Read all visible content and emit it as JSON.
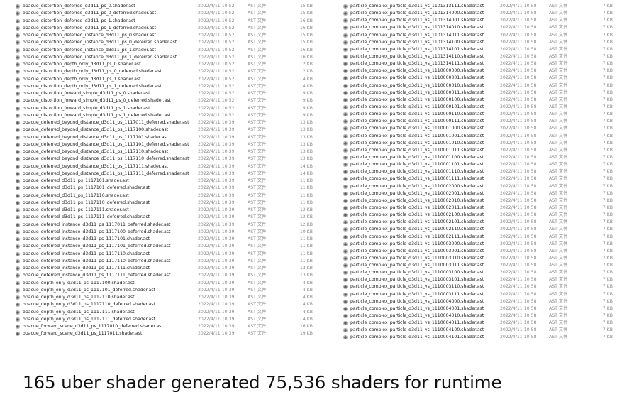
{
  "file_icon": "shader-file-icon",
  "left_files": [
    [
      "opacue_distortion_deferred_d3d11_ps_0.shader.ast",
      "2022/4/11 10:52",
      "AST 文件",
      "15 KB"
    ],
    [
      "opacue_distortion_deferred_d3d11_ps_0_deferred.shader.ast",
      "2022/4/11 10:52",
      "AST 文件",
      "15 KB"
    ],
    [
      "opacue_distortion_deferred_d3d11_ps_1.shader.ast",
      "2022/4/11 10:52",
      "AST 文件",
      "16 KB"
    ],
    [
      "opacue_distortion_deferred_d3d11_ps_1_deferred.shader.ast",
      "2022/4/11 10:52",
      "AST 文件",
      "16 KB"
    ],
    [
      "opacue_distortion_deferred_instance_d3d11_ps_0.shader.ast",
      "2022/4/11 10:52",
      "AST 文件",
      "15 KB"
    ],
    [
      "opacue_distortion_deferred_instance_d3d11_ps_0_deferred.shader.ast",
      "2022/4/11 10:52",
      "AST 文件",
      "15 KB"
    ],
    [
      "opacue_distortion_deferred_instance_d3d11_ps_1.shader.ast",
      "2022/4/11 10:52",
      "AST 文件",
      "16 KB"
    ],
    [
      "opacue_distortion_deferred_instance_d3d11_ps_1_deferred.shader.ast",
      "2022/4/11 10:52",
      "AST 文件",
      "16 KB"
    ],
    [
      "opacue_distortion_depth_only_d3d11_ps_0.shader.ast",
      "2022/4/11 10:52",
      "AST 文件",
      "2 KB"
    ],
    [
      "opacue_distortion_depth_only_d3d11_ps_0_deferred.shader.ast",
      "2022/4/11 10:52",
      "AST 文件",
      "2 KB"
    ],
    [
      "opacue_distortion_depth_only_d3d11_ps_1.shader.ast",
      "2022/4/11 10:52",
      "AST 文件",
      "4 KB"
    ],
    [
      "opacue_distortion_depth_only_d3d11_ps_1_deferred.shader.ast",
      "2022/4/11 10:52",
      "AST 文件",
      "4 KB"
    ],
    [
      "opacue_distortion_forward_simple_d3d11_ps_0.shader.ast",
      "2022/4/11 10:52",
      "AST 文件",
      "9 KB"
    ],
    [
      "opacue_distortion_forward_simple_d3d11_ps_0_deferred.shader.ast",
      "2022/4/11 10:52",
      "AST 文件",
      "9 KB"
    ],
    [
      "opacue_distortion_forward_simple_d3d11_ps_1.shader.ast",
      "2022/4/11 10:52",
      "AST 文件",
      "9 KB"
    ],
    [
      "opacue_distortion_forward_simple_d3d11_ps_1_deferred.shader.ast",
      "2022/4/11 10:52",
      "AST 文件",
      "9 KB"
    ],
    [
      "opacue_deferred_beyond_distance_d3d11_ps_1117011_deferred.shader.ast",
      "2022/4/11 10:39",
      "AST 文件",
      "13 KB"
    ],
    [
      "opacue_deferred_beyond_distance_d3d11_ps_1117100.shader.ast",
      "2022/4/11 10:39",
      "AST 文件",
      "13 KB"
    ],
    [
      "opacue_deferred_beyond_distance_d3d11_ps_1117101.shader.ast",
      "2022/4/11 10:39",
      "AST 文件",
      "13 KB"
    ],
    [
      "opacue_deferred_beyond_distance_d3d11_ps_1117101_deferred.shader.ast",
      "2022/4/11 10:39",
      "AST 文件",
      "13 KB"
    ],
    [
      "opacue_deferred_beyond_distance_d3d11_ps_1117110.shader.ast",
      "2022/4/11 10:39",
      "AST 文件",
      "13 KB"
    ],
    [
      "opacue_deferred_beyond_distance_d3d11_ps_1117110_deferred.shader.ast",
      "2022/4/11 10:39",
      "AST 文件",
      "13 KB"
    ],
    [
      "opacue_deferred_beyond_distance_d3d11_ps_1117111.shader.ast",
      "2022/4/11 10:39",
      "AST 文件",
      "14 KB"
    ],
    [
      "opacue_deferred_beyond_distance_d3d11_ps_1117111_deferred.shader.ast",
      "2022/4/11 10:39",
      "AST 文件",
      "14 KB"
    ],
    [
      "opacue_deferred_d3d11_ps_1117101.shader.ast",
      "2022/4/11 10:39",
      "AST 文件",
      "11 KB"
    ],
    [
      "opacue_deferred_d3d11_ps_1117101_deferred.shader.ast",
      "2022/4/11 10:39",
      "AST 文件",
      "11 KB"
    ],
    [
      "opacue_deferred_d3d11_ps_1117110.shader.ast",
      "2022/4/11 10:39",
      "AST 文件",
      "11 KB"
    ],
    [
      "opacue_deferred_d3d11_ps_1117110_deferred.shader.ast",
      "2022/4/11 10:39",
      "AST 文件",
      "11 KB"
    ],
    [
      "opacue_deferred_d3d11_ps_1117111.shader.ast",
      "2022/4/11 10:39",
      "AST 文件",
      "12 KB"
    ],
    [
      "opacue_deferred_d3d11_ps_1117111_deferred.shader.ast",
      "2022/4/11 10:39",
      "AST 文件",
      "12 KB"
    ],
    [
      "opacue_deferred_instance_d3d11_ps_1117011_deferred.shader.ast",
      "2022/4/11 10:39",
      "AST 文件",
      "12 KB"
    ],
    [
      "opacue_deferred_instance_d3d11_ps_1117100_deferred.shader.ast",
      "2022/4/11 10:39",
      "AST 文件",
      "10 KB"
    ],
    [
      "opacue_deferred_instance_d3d11_ps_1117101.shader.ast",
      "2022/4/11 10:39",
      "AST 文件",
      "11 KB"
    ],
    [
      "opacue_deferred_instance_d3d11_ps_1117101_deferred.shader.ast",
      "2022/4/11 10:39",
      "AST 文件",
      "11 KB"
    ],
    [
      "opacue_deferred_instance_d3d11_ps_1117110.shader.ast",
      "2022/4/11 10:39",
      "AST 文件",
      "11 KB"
    ],
    [
      "opacue_deferred_instance_d3d11_ps_1117110_deferred.shader.ast",
      "2022/4/11 10:39",
      "AST 文件",
      "11 KB"
    ],
    [
      "opacue_deferred_instance_d3d11_ps_1117111.shader.ast",
      "2022/4/11 10:39",
      "AST 文件",
      "13 KB"
    ],
    [
      "opacue_deferred_instance_d3d11_ps_1117111_deferred.shader.ast",
      "2022/4/11 10:39",
      "AST 文件",
      "13 KB"
    ],
    [
      "opacue_depth_only_d3d11_ps_1117100.shader.ast",
      "2022/4/11 10:39",
      "AST 文件",
      "4 KB"
    ],
    [
      "opacue_depth_only_d3d11_ps_1117101_deferred.shader.ast",
      "2022/4/11 10:39",
      "AST 文件",
      "4 KB"
    ],
    [
      "opacue_depth_only_d3d11_ps_1117110.shader.ast",
      "2022/4/11 10:39",
      "AST 文件",
      "4 KB"
    ],
    [
      "opacue_depth_only_d3d11_ps_1117110_deferred.shader.ast",
      "2022/4/11 10:39",
      "AST 文件",
      "4 KB"
    ],
    [
      "opacue_depth_only_d3d11_ps_1117111.shader.ast",
      "2022/4/11 10:39",
      "AST 文件",
      "4 KB"
    ],
    [
      "opacue_depth_only_d3d11_ps_1117111_deferred.shader.ast",
      "2022/4/11 10:39",
      "AST 文件",
      "4 KB"
    ],
    [
      "opacue_forward_scene_d3d11_ps_1117010_deferred.shader.ast",
      "2022/4/11 10:39",
      "AST 文件",
      "16 KB"
    ],
    [
      "opacue_forward_scene_d3d11_ps_1117011.shader.ast",
      "2022/4/11 10:39",
      "AST 文件",
      "19 KB"
    ]
  ],
  "right_files": [
    [
      "particle_complex_particle_d3d11_vs_1101313111.shader.ast",
      "2022/4/11 10:58",
      "AST 文件",
      "7 KB"
    ],
    [
      "particle_complex_particle_d3d11_vs_1101314000.shader.ast",
      "2022/4/11 10:58",
      "AST 文件",
      "7 KB"
    ],
    [
      "particle_complex_particle_d3d11_vs_1101314001.shader.ast",
      "2022/4/11 10:58",
      "AST 文件",
      "7 KB"
    ],
    [
      "particle_complex_particle_d3d11_vs_1101314010.shader.ast",
      "2022/4/11 10:58",
      "AST 文件",
      "7 KB"
    ],
    [
      "particle_complex_particle_d3d11_vs_1101314011.shader.ast",
      "2022/4/11 10:58",
      "AST 文件",
      "7 KB"
    ],
    [
      "particle_complex_particle_d3d11_vs_1101314100.shader.ast",
      "2022/4/11 10:58",
      "AST 文件",
      "7 KB"
    ],
    [
      "particle_complex_particle_d3d11_vs_1101314101.shader.ast",
      "2022/4/11 10:58",
      "AST 文件",
      "7 KB"
    ],
    [
      "particle_complex_particle_d3d11_vs_1101314110.shader.ast",
      "2022/4/11 10:58",
      "AST 文件",
      "7 KB"
    ],
    [
      "particle_complex_particle_d3d11_vs_1101314111.shader.ast",
      "2022/4/11 10:58",
      "AST 文件",
      "7 KB"
    ],
    [
      "particle_complex_particle_d3d11_vs_1110000000.shader.ast",
      "2022/4/11 10:58",
      "AST 文件",
      "7 KB"
    ],
    [
      "particle_complex_particle_d3d11_vs_1110000001.shader.ast",
      "2022/4/11 10:58",
      "AST 文件",
      "7 KB"
    ],
    [
      "particle_complex_particle_d3d11_vs_1110000010.shader.ast",
      "2022/4/11 10:58",
      "AST 文件",
      "7 KB"
    ],
    [
      "particle_complex_particle_d3d11_vs_1110000011.shader.ast",
      "2022/4/11 10:58",
      "AST 文件",
      "7 KB"
    ],
    [
      "particle_complex_particle_d3d11_vs_1110000100.shader.ast",
      "2022/4/11 10:58",
      "AST 文件",
      "7 KB"
    ],
    [
      "particle_complex_particle_d3d11_vs_1110000101.shader.ast",
      "2022/4/11 10:58",
      "AST 文件",
      "7 KB"
    ],
    [
      "particle_complex_particle_d3d11_vs_1110000110.shader.ast",
      "2022/4/11 10:58",
      "AST 文件",
      "7 KB"
    ],
    [
      "particle_complex_particle_d3d11_vs_1110000111.shader.ast",
      "2022/4/11 10:58",
      "AST 文件",
      "7 KB"
    ],
    [
      "particle_complex_particle_d3d11_vs_1110001000.shader.ast",
      "2022/4/11 10:58",
      "AST 文件",
      "7 KB"
    ],
    [
      "particle_complex_particle_d3d11_vs_1110001001.shader.ast",
      "2022/4/11 10:58",
      "AST 文件",
      "7 KB"
    ],
    [
      "particle_complex_particle_d3d11_vs_1110001010.shader.ast",
      "2022/4/11 10:58",
      "AST 文件",
      "7 KB"
    ],
    [
      "particle_complex_particle_d3d11_vs_1110001011.shader.ast",
      "2022/4/11 10:58",
      "AST 文件",
      "7 KB"
    ],
    [
      "particle_complex_particle_d3d11_vs_1110001100.shader.ast",
      "2022/4/11 10:58",
      "AST 文件",
      "7 KB"
    ],
    [
      "particle_complex_particle_d3d11_vs_1110001101.shader.ast",
      "2022/4/11 10:58",
      "AST 文件",
      "7 KB"
    ],
    [
      "particle_complex_particle_d3d11_vs_1110001110.shader.ast",
      "2022/4/11 10:58",
      "AST 文件",
      "7 KB"
    ],
    [
      "particle_complex_particle_d3d11_vs_1110001111.shader.ast",
      "2022/4/11 10:58",
      "AST 文件",
      "7 KB"
    ],
    [
      "particle_complex_particle_d3d11_vs_1110002000.shader.ast",
      "2022/4/11 10:58",
      "AST 文件",
      "7 KB"
    ],
    [
      "particle_complex_particle_d3d11_vs_1110002001.shader.ast",
      "2022/4/11 10:58",
      "AST 文件",
      "7 KB"
    ],
    [
      "particle_complex_particle_d3d11_vs_1110002010.shader.ast",
      "2022/4/11 10:58",
      "AST 文件",
      "7 KB"
    ],
    [
      "particle_complex_particle_d3d11_vs_1110002011.shader.ast",
      "2022/4/11 10:58",
      "AST 文件",
      "7 KB"
    ],
    [
      "particle_complex_particle_d3d11_vs_1110002100.shader.ast",
      "2022/4/11 10:58",
      "AST 文件",
      "7 KB"
    ],
    [
      "particle_complex_particle_d3d11_vs_1110002101.shader.ast",
      "2022/4/11 10:58",
      "AST 文件",
      "7 KB"
    ],
    [
      "particle_complex_particle_d3d11_vs_1110002110.shader.ast",
      "2022/4/11 10:58",
      "AST 文件",
      "7 KB"
    ],
    [
      "particle_complex_particle_d3d11_vs_1110002111.shader.ast",
      "2022/4/11 10:58",
      "AST 文件",
      "7 KB"
    ],
    [
      "particle_complex_particle_d3d11_vs_1110003000.shader.ast",
      "2022/4/11 10:58",
      "AST 文件",
      "7 KB"
    ],
    [
      "particle_complex_particle_d3d11_vs_1110003001.shader.ast",
      "2022/4/11 10:58",
      "AST 文件",
      "7 KB"
    ],
    [
      "particle_complex_particle_d3d11_vs_1110003010.shader.ast",
      "2022/4/11 10:58",
      "AST 文件",
      "7 KB"
    ],
    [
      "particle_complex_particle_d3d11_vs_1110003011.shader.ast",
      "2022/4/11 10:58",
      "AST 文件",
      "7 KB"
    ],
    [
      "particle_complex_particle_d3d11_vs_1110003100.shader.ast",
      "2022/4/11 10:58",
      "AST 文件",
      "7 KB"
    ],
    [
      "particle_complex_particle_d3d11_vs_1110003101.shader.ast",
      "2022/4/11 10:58",
      "AST 文件",
      "7 KB"
    ],
    [
      "particle_complex_particle_d3d11_vs_1110003110.shader.ast",
      "2022/4/11 10:58",
      "AST 文件",
      "7 KB"
    ],
    [
      "particle_complex_particle_d3d11_vs_1110003111.shader.ast",
      "2022/4/11 10:58",
      "AST 文件",
      "7 KB"
    ],
    [
      "particle_complex_particle_d3d11_vs_1110004000.shader.ast",
      "2022/4/11 10:58",
      "AST 文件",
      "7 KB"
    ],
    [
      "particle_complex_particle_d3d11_vs_1110004001.shader.ast",
      "2022/4/11 10:58",
      "AST 文件",
      "7 KB"
    ],
    [
      "particle_complex_particle_d3d11_vs_1110004010.shader.ast",
      "2022/4/11 10:58",
      "AST 文件",
      "7 KB"
    ],
    [
      "particle_complex_particle_d3d11_vs_1110004011.shader.ast",
      "2022/4/11 10:58",
      "AST 文件",
      "7 KB"
    ],
    [
      "particle_complex_particle_d3d11_vs_1110004100.shader.ast",
      "2022/4/11 10:58",
      "AST 文件",
      "7 KB"
    ],
    [
      "particle_complex_particle_d3d11_vs_1110004101.shader.ast",
      "2022/4/11 10:58",
      "AST 文件",
      "7 KB"
    ]
  ],
  "caption": "165 uber shader generated 75,536 shaders for runtime"
}
